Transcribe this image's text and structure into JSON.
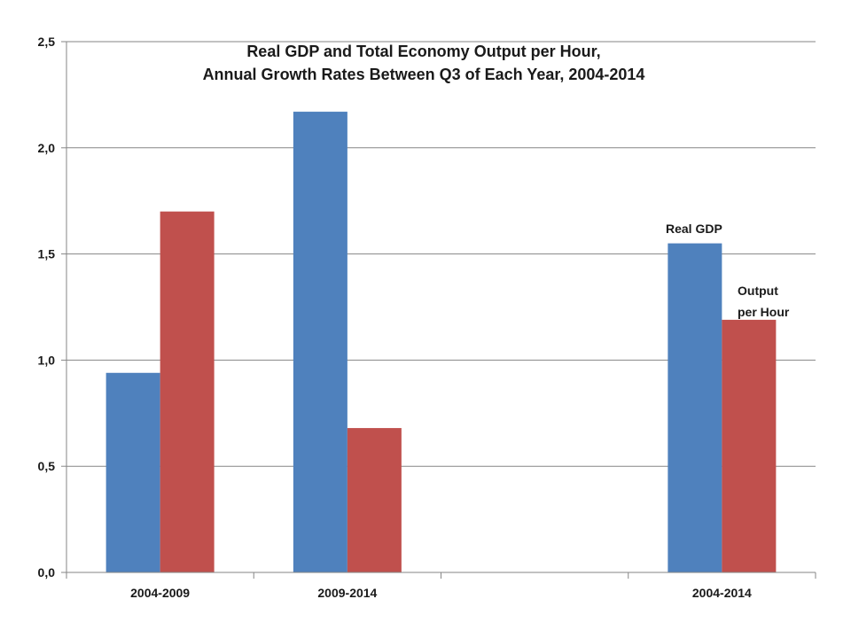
{
  "chart_data": {
    "type": "bar",
    "title_lines": [
      "Real GDP and Total Economy Output per Hour,",
      "Annual Growth Rates Between Q3 of Each Year, 2004-2014"
    ],
    "categories": [
      "2004-2009",
      "2009-2014",
      "",
      "2004-2014"
    ],
    "series": [
      {
        "values": [
          0.94,
          2.17,
          null,
          1.55
        ],
        "color": "#4f81bd"
      },
      {
        "values": [
          1.7,
          0.68,
          null,
          1.19
        ],
        "color": "#c0504d"
      }
    ],
    "annotations": [
      "Real GDP",
      "Output",
      "per Hour"
    ],
    "ylim": [
      0,
      2.5
    ],
    "yticks": [
      "0,0",
      "0,5",
      "1,0",
      "1,5",
      "2,0",
      "2,5"
    ],
    "grid": true,
    "xlabel": "",
    "ylabel": ""
  }
}
